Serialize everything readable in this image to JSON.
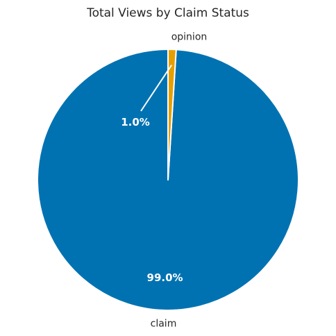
{
  "chart_data": {
    "type": "pie",
    "title": "Total Views by Claim Status",
    "slices": [
      {
        "label": "claim",
        "value": 99.0,
        "display": "99.0%",
        "color": "#0072b2"
      },
      {
        "label": "opinion",
        "value": 1.0,
        "display": "1.0%",
        "color": "#e69f00"
      }
    ],
    "start_angle_deg": 90,
    "direction": "counterclockwise",
    "edge_color": "#ffffff"
  }
}
